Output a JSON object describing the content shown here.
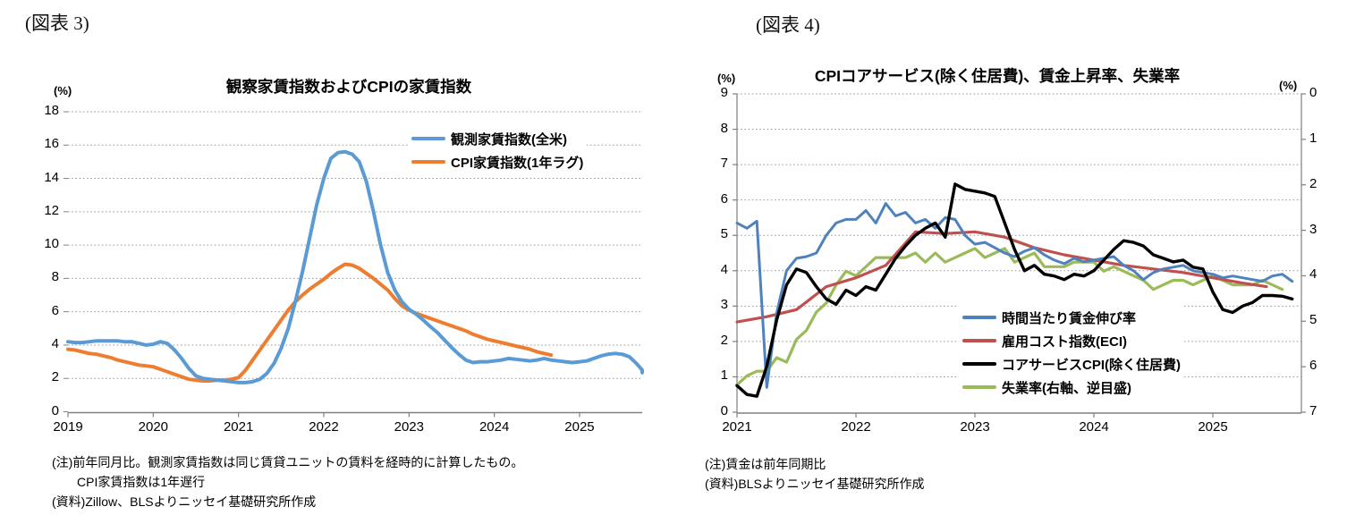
{
  "figure3": {
    "figure_label": "(図表 3)",
    "title": "観察家賃指数およびCPIの家賃指数",
    "axis_unit_left": "(%)",
    "y_tick_labels": [
      "0",
      "2",
      "4",
      "6",
      "8",
      "10",
      "12",
      "14",
      "16",
      "18"
    ],
    "x_tick_labels": [
      "2019",
      "2020",
      "2021",
      "2022",
      "2023",
      "2024",
      "2025"
    ],
    "note_line1": "(注)前年同月比。観測家賃指数は同じ賃貸ユニットの賃料を経時的に計算したもの。",
    "note_line2": "CPI家賃指数は1年遅行",
    "note_line3": "(資料)Zillow、BLSよりニッセイ基礎研究所作成",
    "chart_data": {
      "type": "line",
      "title": "観察家賃指数およびCPIの家賃指数",
      "ylabel": "(%)",
      "ylim": [
        0,
        18
      ],
      "x_start": 2019.0,
      "x_end": 2025.75,
      "grid": "horizontal-dotted",
      "legend_position": "top-right-inside",
      "series": [
        {
          "name": "観測家賃指数(全米)",
          "color": "#5B9BD5",
          "axis": "left",
          "freq": "monthly",
          "start": "2019-01",
          "values": [
            4.2,
            4.15,
            4.15,
            4.2,
            4.25,
            4.25,
            4.25,
            4.25,
            4.2,
            4.2,
            4.1,
            4.0,
            4.05,
            4.2,
            4.1,
            3.7,
            3.2,
            2.6,
            2.15,
            2.0,
            1.95,
            1.9,
            1.85,
            1.8,
            1.75,
            1.75,
            1.8,
            1.95,
            2.3,
            2.9,
            3.8,
            5.0,
            6.6,
            8.4,
            10.4,
            12.4,
            14.0,
            15.2,
            15.55,
            15.6,
            15.45,
            15.0,
            13.8,
            12.0,
            10.0,
            8.35,
            7.3,
            6.6,
            6.15,
            5.85,
            5.5,
            5.1,
            4.75,
            4.3,
            3.85,
            3.45,
            3.1,
            2.95,
            3.0,
            3.0,
            3.05,
            3.1,
            3.2,
            3.15,
            3.1,
            3.05,
            3.1,
            3.2,
            3.1,
            3.05,
            3.0,
            2.95,
            3.0,
            3.05,
            3.2,
            3.35,
            3.45,
            3.5,
            3.45,
            3.3,
            2.9,
            2.5,
            2.35
          ]
        },
        {
          "name": "CPI家賃指数(1年ラグ)",
          "color": "#ED7D31",
          "axis": "left",
          "freq": "monthly",
          "start": "2019-01",
          "values": [
            3.75,
            3.7,
            3.6,
            3.5,
            3.45,
            3.35,
            3.25,
            3.1,
            3.0,
            2.9,
            2.8,
            2.75,
            2.7,
            2.55,
            2.4,
            2.25,
            2.1,
            1.95,
            1.9,
            1.85,
            1.85,
            1.9,
            1.9,
            1.95,
            2.05,
            2.5,
            3.1,
            3.7,
            4.3,
            4.9,
            5.5,
            6.1,
            6.6,
            7.0,
            7.35,
            7.65,
            7.95,
            8.3,
            8.6,
            8.85,
            8.8,
            8.6,
            8.3,
            8.0,
            7.65,
            7.3,
            6.8,
            6.35,
            6.1,
            5.9,
            5.75,
            5.6,
            5.45,
            5.3,
            5.15,
            5.0,
            4.85,
            4.65,
            4.5,
            4.35,
            4.25,
            4.15,
            4.05,
            3.95,
            3.85,
            3.75,
            3.6,
            3.5,
            3.4
          ]
        }
      ]
    }
  },
  "figure4": {
    "figure_label": "(図表 4)",
    "title": "CPIコアサービス(除く住居費)、賃金上昇率、失業率",
    "axis_unit_left": "(%)",
    "axis_unit_right": "(%)",
    "y_tick_labels_left": [
      "0",
      "1",
      "2",
      "3",
      "4",
      "5",
      "6",
      "7",
      "8",
      "9"
    ],
    "y_tick_labels_right": [
      "0",
      "1",
      "2",
      "3",
      "4",
      "5",
      "6",
      "7"
    ],
    "x_tick_labels": [
      "2021",
      "2022",
      "2023",
      "2024",
      "2025"
    ],
    "note_line1": "(注)賃金は前年同期比",
    "note_line2": "(資料)BLSよりニッセイ基礎研究所作成",
    "chart_data": {
      "type": "line",
      "title": "CPIコアサービス(除く住居費)、賃金上昇率、失業率",
      "x_start": 2021.0,
      "x_end": 2025.74,
      "grid": "horizontal-dotted",
      "legend_position": "bottom-right-inside",
      "left_axis": {
        "label": "(%)",
        "range": [
          0,
          9
        ]
      },
      "right_axis": {
        "label": "(%)",
        "range": [
          0,
          7
        ],
        "inverted": true
      },
      "series": [
        {
          "name": "時間当たり賃金伸び率",
          "color": "#4F81BD",
          "axis": "left",
          "freq": "monthly",
          "start": "2021-01",
          "values": [
            5.35,
            5.2,
            5.4,
            0.7,
            2.8,
            4.0,
            4.35,
            4.4,
            4.5,
            5.0,
            5.35,
            5.45,
            5.45,
            5.7,
            5.35,
            5.9,
            5.55,
            5.65,
            5.35,
            5.45,
            5.2,
            5.5,
            5.45,
            5.0,
            4.75,
            4.8,
            4.65,
            4.5,
            4.4,
            4.55,
            4.65,
            4.45,
            4.3,
            4.2,
            4.35,
            4.25,
            4.3,
            4.35,
            4.4,
            4.15,
            4.0,
            3.75,
            3.95,
            4.05,
            4.1,
            4.15,
            4.0,
            3.95,
            3.9,
            3.8,
            3.85,
            3.8,
            3.75,
            3.7,
            3.85,
            3.9,
            3.7
          ]
        },
        {
          "name": "雇用コスト指数(ECI)",
          "color": "#C0504D",
          "axis": "left",
          "freq": "quarterly",
          "x": [
            2021.0,
            2021.25,
            2021.5,
            2021.75,
            2022.0,
            2022.25,
            2022.5,
            2022.75,
            2023.0,
            2023.25,
            2023.5,
            2023.75,
            2024.0,
            2024.25,
            2024.5,
            2024.75,
            2025.0,
            2025.25,
            2025.45
          ],
          "values": [
            2.55,
            2.7,
            2.9,
            3.55,
            3.8,
            4.15,
            5.1,
            5.05,
            5.1,
            4.95,
            4.65,
            4.45,
            4.3,
            4.15,
            4.05,
            3.95,
            3.8,
            3.65,
            3.55
          ]
        },
        {
          "name": "コアサービスCPI(除く住居費)",
          "color": "#000000",
          "axis": "left",
          "freq": "monthly",
          "start": "2021-01",
          "values": [
            0.75,
            0.5,
            0.45,
            1.3,
            2.6,
            3.6,
            4.05,
            3.95,
            3.55,
            3.2,
            3.05,
            3.45,
            3.3,
            3.55,
            3.45,
            3.9,
            4.35,
            4.7,
            5.0,
            5.2,
            5.35,
            4.95,
            6.45,
            6.3,
            6.25,
            6.2,
            6.1,
            5.35,
            4.6,
            4.0,
            4.15,
            3.9,
            3.85,
            3.75,
            3.9,
            3.85,
            4.0,
            4.3,
            4.6,
            4.85,
            4.8,
            4.7,
            4.45,
            4.35,
            4.25,
            4.3,
            4.1,
            4.05,
            3.4,
            2.9,
            2.82,
            3.0,
            3.1,
            3.3,
            3.3,
            3.28,
            3.2
          ]
        },
        {
          "name": "失業率(右軸、逆目盛)",
          "color": "#9BBB59",
          "axis": "right",
          "freq": "monthly",
          "start": "2021-01",
          "values": [
            6.4,
            6.2,
            6.1,
            6.1,
            5.8,
            5.9,
            5.4,
            5.2,
            4.8,
            4.6,
            4.2,
            3.9,
            4.0,
            3.8,
            3.6,
            3.6,
            3.6,
            3.6,
            3.5,
            3.7,
            3.5,
            3.7,
            3.6,
            3.5,
            3.4,
            3.6,
            3.5,
            3.4,
            3.7,
            3.6,
            3.5,
            3.8,
            3.8,
            3.8,
            3.7,
            3.7,
            3.7,
            3.9,
            3.8,
            3.9,
            4.0,
            4.1,
            4.3,
            4.2,
            4.1,
            4.1,
            4.2,
            4.1,
            4.0,
            4.1,
            4.2,
            4.2,
            4.2,
            4.1,
            4.2,
            4.3
          ]
        }
      ]
    }
  }
}
